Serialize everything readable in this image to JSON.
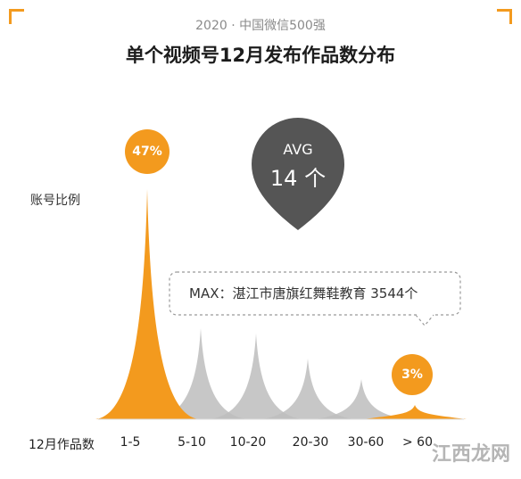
{
  "header": {
    "subtitle": "2020 · 中国微信500强",
    "title": "单个视频号12月发布作品数分布"
  },
  "avg": {
    "label": "AVG",
    "value": "14 个"
  },
  "max_note": "MAX：湛江市唐旗红舞鞋教育  3544个",
  "watermark": "江西龙网",
  "colors": {
    "accent": "#f39a1e",
    "grey": "#bdbdbd",
    "dark": "#555555"
  },
  "chart_data": {
    "type": "area",
    "ylabel": "账号比例",
    "xlabel": "12月作品数",
    "categories": [
      "1-5",
      "5-10",
      "10-20",
      "20-30",
      "30-60",
      "> 60"
    ],
    "values_percent": [
      47,
      null,
      null,
      null,
      null,
      3
    ],
    "labels": [
      "47%",
      "",
      "",
      "",
      "",
      "3%"
    ],
    "highlight": [
      true,
      false,
      false,
      false,
      false,
      true
    ]
  }
}
